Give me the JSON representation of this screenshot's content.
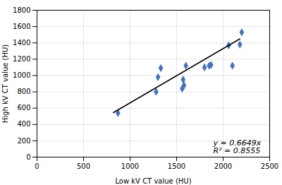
{
  "chart_data": {
    "type": "scatter",
    "xlabel": "Low kV CT value (HU)",
    "ylabel": "High kV CT value (HU)",
    "xlim": [
      0,
      2500
    ],
    "ylim": [
      0,
      1800
    ],
    "xticks": [
      0,
      500,
      1000,
      1500,
      2000,
      2500
    ],
    "yticks": [
      0,
      200,
      400,
      600,
      800,
      1000,
      1200,
      1400,
      1600,
      1800
    ],
    "grid": true,
    "annotations": [
      "y = 0.6649x",
      "R² = 0.8555"
    ],
    "series": [
      {
        "type": "scatter",
        "color": "#4472C4",
        "marker": "diamond",
        "x": [
          870,
          1280,
          1300,
          1330,
          1560,
          1570,
          1580,
          1600,
          1800,
          1850,
          1870,
          2060,
          2100,
          2180,
          2200
        ],
        "values": [
          540,
          800,
          980,
          1090,
          840,
          950,
          880,
          1120,
          1100,
          1120,
          1130,
          1370,
          1120,
          1380,
          1530
        ]
      },
      {
        "type": "line",
        "color": "#000000",
        "line_style": "solid",
        "x": [
          820,
          2180
        ],
        "values": [
          545.218,
          1449.482
        ]
      }
    ]
  }
}
